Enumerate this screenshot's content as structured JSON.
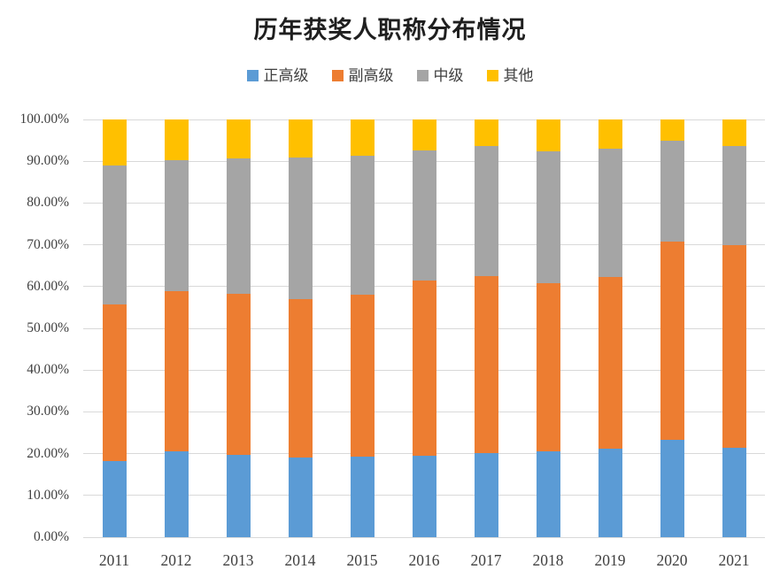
{
  "chart_data": {
    "type": "bar",
    "variant": "stacked-100-percent",
    "title": "历年获奖人职称分布情况",
    "categories": [
      "2011",
      "2012",
      "2013",
      "2014",
      "2015",
      "2016",
      "2017",
      "2018",
      "2019",
      "2020",
      "2021"
    ],
    "series": [
      {
        "name": "正高级",
        "color": "#5B9BD5",
        "values": [
          18.3,
          20.5,
          19.7,
          19.0,
          19.2,
          19.4,
          20.1,
          20.6,
          21.2,
          23.3,
          21.3
        ]
      },
      {
        "name": "副高级",
        "color": "#ED7D31",
        "values": [
          37.4,
          38.3,
          38.5,
          38.1,
          38.9,
          42.0,
          42.4,
          40.3,
          41.1,
          47.4,
          48.7
        ]
      },
      {
        "name": "中级",
        "color": "#A5A5A5",
        "values": [
          33.2,
          31.5,
          32.4,
          33.7,
          33.3,
          31.2,
          31.2,
          31.5,
          30.7,
          24.2,
          23.7
        ]
      },
      {
        "name": "其他",
        "color": "#FFC000",
        "values": [
          11.1,
          9.7,
          9.4,
          9.2,
          8.6,
          7.4,
          6.3,
          7.6,
          7.0,
          5.1,
          6.3
        ]
      }
    ],
    "y_axis": {
      "min": 0,
      "max": 100,
      "tick_labels": [
        "0.00%",
        "10.00%",
        "20.00%",
        "30.00%",
        "40.00%",
        "50.00%",
        "60.00%",
        "70.00%",
        "80.00%",
        "90.00%",
        "100.00%"
      ]
    },
    "x_axis_label": "",
    "y_axis_label": "",
    "grid": true,
    "legend_position": "top",
    "colors": {
      "gridline": "#D9D9D9",
      "axis_text": "#404040",
      "title_text": "#1F1F1F",
      "background": "#FFFFFF"
    }
  }
}
